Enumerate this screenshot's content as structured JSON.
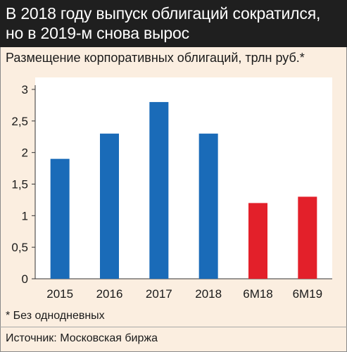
{
  "header": {
    "line1": "В 2018 году выпуск облигаций сократился,",
    "line2": "но в 2019-м снова вырос"
  },
  "footnote": "* Без однодневных",
  "source": "Источник: Московская биржа",
  "colors": {
    "header_bg": "#1f1f1f",
    "panel_bg": "#fbeee0",
    "bar_blue": "#1a6bb8",
    "bar_red": "#e3202a"
  },
  "chart_data": {
    "type": "bar",
    "title": "Размещение корпоративных облигаций, трлн руб.*",
    "categories": [
      "2015",
      "2016",
      "2017",
      "2018",
      "6М18",
      "6М19"
    ],
    "values": [
      1.9,
      2.3,
      2.8,
      2.3,
      1.2,
      1.3
    ],
    "bar_colors": [
      "#1a6bb8",
      "#1a6bb8",
      "#1a6bb8",
      "#1a6bb8",
      "#e3202a",
      "#e3202a"
    ],
    "ylim": [
      0,
      3
    ],
    "yticks": [
      0,
      0.5,
      1,
      1.5,
      2,
      2.5,
      3
    ],
    "ytick_labels": [
      "0",
      "0,5",
      "1",
      "1,5",
      "2",
      "2,5",
      "3"
    ],
    "grid": false,
    "xlabel": "",
    "ylabel": ""
  }
}
